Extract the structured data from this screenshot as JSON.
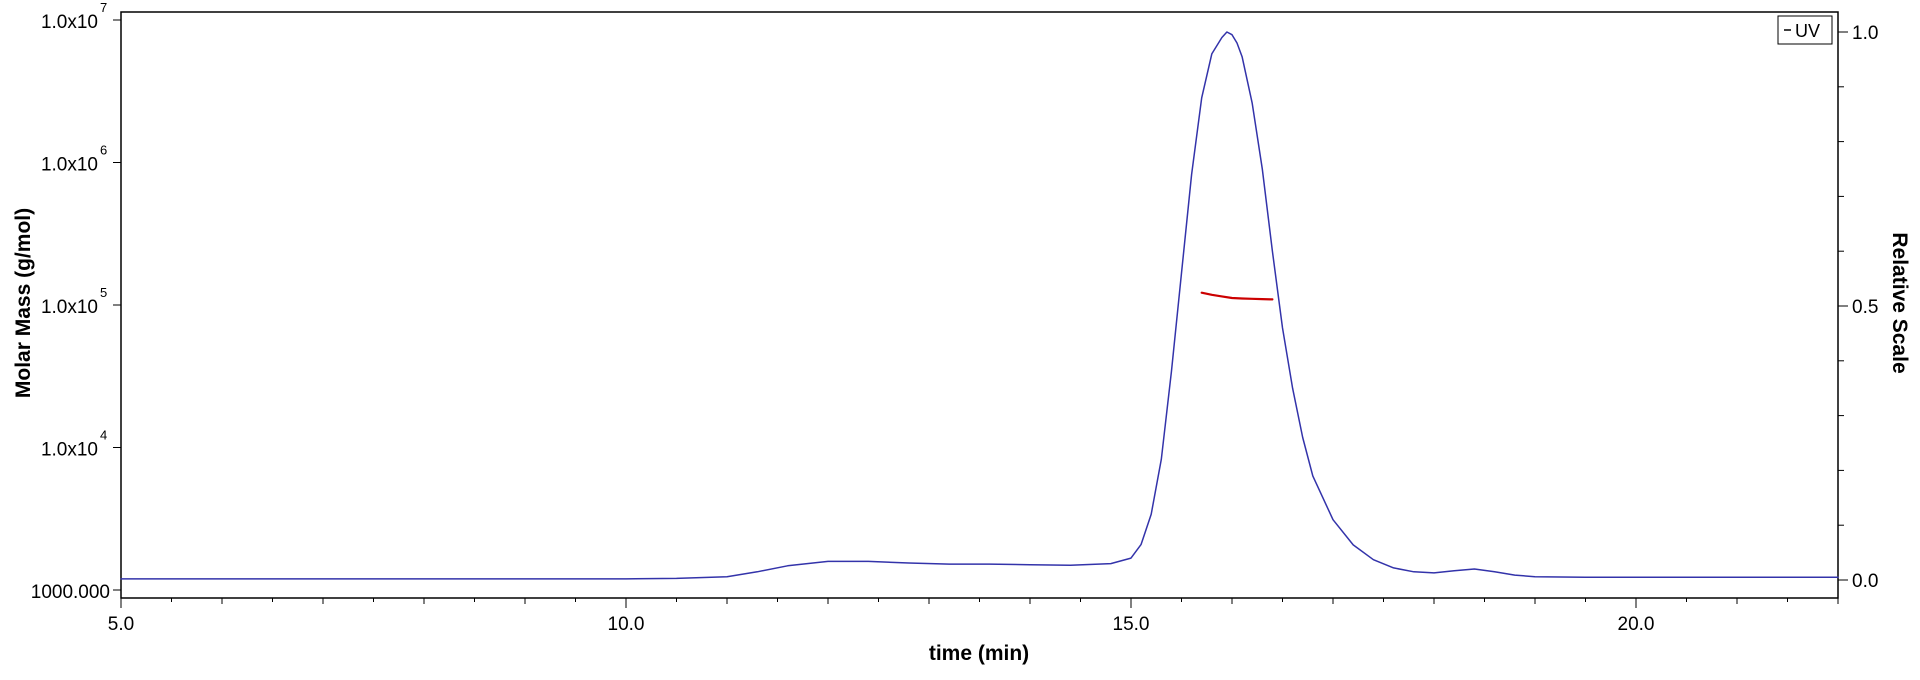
{
  "chart_data": {
    "type": "line",
    "xlabel": "time (min)",
    "ylabel_left": "Molar Mass (g/mol)",
    "ylabel_right": "Relative Scale",
    "xlim": [
      5.0,
      22.0
    ],
    "x_ticks": [
      {
        "value": 5.0,
        "label": "5.0"
      },
      {
        "value": 10.0,
        "label": "10.0"
      },
      {
        "value": 15.0,
        "label": "15.0"
      },
      {
        "value": 20.0,
        "label": "20.0"
      }
    ],
    "y_left_scale": "log",
    "y_left_lim": [
      1000,
      10000000
    ],
    "y_left_ticks": [
      {
        "value": 10000000,
        "base": "1.0x10",
        "exp": "7"
      },
      {
        "value": 1000000,
        "base": "1.0x10",
        "exp": "6"
      },
      {
        "value": 100000,
        "base": "1.0x10",
        "exp": "5"
      },
      {
        "value": 10000,
        "base": "1.0x10",
        "exp": "4"
      },
      {
        "value": 1000,
        "base": "1000.000",
        "exp": ""
      }
    ],
    "y_right_lim": [
      0.0,
      1.0
    ],
    "y_right_ticks": [
      {
        "value": 1.0,
        "label": "1.0"
      },
      {
        "value": 0.5,
        "label": "0.5"
      },
      {
        "value": 0.0,
        "label": "0.0"
      }
    ],
    "legend": {
      "label": "UV",
      "placement": "top-right"
    },
    "series": [
      {
        "name": "UV",
        "axis": "right",
        "color": "#3333aa",
        "x": [
          5.0,
          6.0,
          7.0,
          8.0,
          9.0,
          10.0,
          10.5,
          11.0,
          11.3,
          11.6,
          12.0,
          12.4,
          12.8,
          13.2,
          13.6,
          14.0,
          14.4,
          14.8,
          15.0,
          15.1,
          15.2,
          15.3,
          15.4,
          15.5,
          15.6,
          15.7,
          15.8,
          15.9,
          15.95,
          16.0,
          16.05,
          16.1,
          16.2,
          16.3,
          16.4,
          16.5,
          16.6,
          16.7,
          16.8,
          17.0,
          17.2,
          17.4,
          17.6,
          17.8,
          18.0,
          18.2,
          18.4,
          18.6,
          18.8,
          19.0,
          19.5,
          20.0,
          21.0,
          22.0
        ],
        "y": [
          0.002,
          0.002,
          0.002,
          0.002,
          0.002,
          0.002,
          0.003,
          0.006,
          0.015,
          0.026,
          0.034,
          0.034,
          0.031,
          0.029,
          0.029,
          0.028,
          0.027,
          0.03,
          0.04,
          0.065,
          0.12,
          0.22,
          0.38,
          0.56,
          0.74,
          0.88,
          0.96,
          0.99,
          1.0,
          0.995,
          0.98,
          0.955,
          0.87,
          0.75,
          0.6,
          0.46,
          0.35,
          0.26,
          0.19,
          0.11,
          0.064,
          0.037,
          0.022,
          0.015,
          0.013,
          0.017,
          0.02,
          0.015,
          0.009,
          0.006,
          0.005,
          0.005,
          0.005,
          0.005
        ]
      },
      {
        "name": "",
        "axis": "left",
        "color": "#cc0000",
        "x": [
          15.7,
          15.8,
          15.9,
          16.0,
          16.1,
          16.2,
          16.3,
          16.4
        ],
        "y": [
          122000,
          118000,
          115000,
          112000,
          111000,
          110500,
          110000,
          109500
        ]
      }
    ]
  }
}
